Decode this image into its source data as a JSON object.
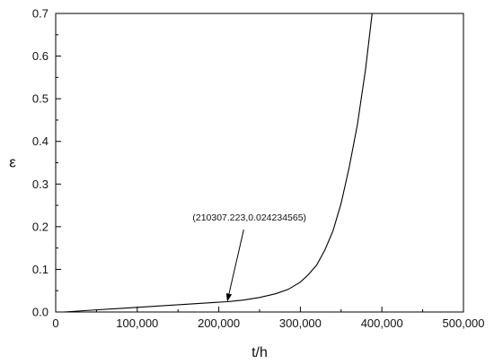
{
  "chart_data": {
    "type": "line",
    "xlabel": "t/h",
    "ylabel": "ε",
    "xlim": [
      0,
      500000
    ],
    "ylim": [
      0,
      0.7
    ],
    "x_ticks": [
      0,
      100000,
      200000,
      300000,
      400000,
      500000
    ],
    "x_tick_labels": [
      "0",
      "100,000",
      "200,000",
      "300,000",
      "400,000",
      "500,000"
    ],
    "y_ticks": [
      0.0,
      0.1,
      0.2,
      0.3,
      0.4,
      0.5,
      0.6,
      0.7
    ],
    "y_tick_labels": [
      "0.0",
      "0.1",
      "0.2",
      "0.3",
      "0.4",
      "0.5",
      "0.6",
      "0.7"
    ],
    "grid": false,
    "series": [
      {
        "x": [
          10000,
          50000,
          100000,
          150000,
          200000,
          210307,
          230000,
          250000,
          270000,
          285000,
          300000,
          310000,
          320000,
          330000,
          340000,
          350000,
          360000,
          370000,
          380000,
          388000
        ],
        "y": [
          0.0,
          0.005,
          0.011,
          0.017,
          0.023,
          0.0242,
          0.028,
          0.034,
          0.043,
          0.053,
          0.07,
          0.088,
          0.11,
          0.145,
          0.19,
          0.255,
          0.34,
          0.44,
          0.57,
          0.7
        ]
      }
    ],
    "annotations": [
      {
        "text": "(210307.223,0.024234565)",
        "point": [
          210307.223,
          0.024234565
        ],
        "text_anchor": [
          170000,
          0.21
        ]
      }
    ]
  }
}
